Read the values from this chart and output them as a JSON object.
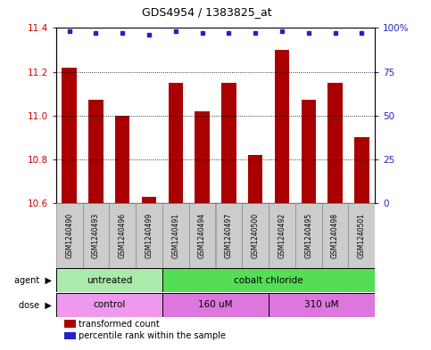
{
  "title": "GDS4954 / 1383825_at",
  "samples": [
    "GSM1240490",
    "GSM1240493",
    "GSM1240496",
    "GSM1240499",
    "GSM1240491",
    "GSM1240494",
    "GSM1240497",
    "GSM1240500",
    "GSM1240492",
    "GSM1240495",
    "GSM1240498",
    "GSM1240501"
  ],
  "bar_values": [
    11.22,
    11.07,
    11.0,
    10.63,
    11.15,
    11.02,
    11.15,
    10.82,
    11.3,
    11.07,
    11.15,
    10.9
  ],
  "dot_values": [
    98,
    97,
    97,
    96,
    98,
    97,
    97,
    97,
    98,
    97,
    97,
    97
  ],
  "bar_color": "#aa0000",
  "dot_color": "#2222cc",
  "ylim_left": [
    10.6,
    11.4
  ],
  "ylim_right": [
    0,
    100
  ],
  "yticks_left": [
    10.6,
    10.8,
    11.0,
    11.2,
    11.4
  ],
  "yticks_right": [
    0,
    25,
    50,
    75,
    100
  ],
  "ytick_labels_right": [
    "0",
    "25",
    "50",
    "75",
    "100%"
  ],
  "grid_values": [
    10.8,
    11.0,
    11.2
  ],
  "agent_groups": [
    {
      "label": "untreated",
      "start": 0,
      "end": 4,
      "color": "#aaeaaa"
    },
    {
      "label": "cobalt chloride",
      "start": 4,
      "end": 12,
      "color": "#55dd55"
    }
  ],
  "dose_groups": [
    {
      "label": "control",
      "start": 0,
      "end": 4,
      "color": "#ee99ee"
    },
    {
      "label": "160 uM",
      "start": 4,
      "end": 8,
      "color": "#dd77dd"
    },
    {
      "label": "310 uM",
      "start": 8,
      "end": 12,
      "color": "#dd77dd"
    }
  ],
  "legend_bar_label": "transformed count",
  "legend_dot_label": "percentile rank within the sample",
  "bar_width": 0.55,
  "sample_box_color": "#cccccc",
  "sample_box_edge": "#888888"
}
